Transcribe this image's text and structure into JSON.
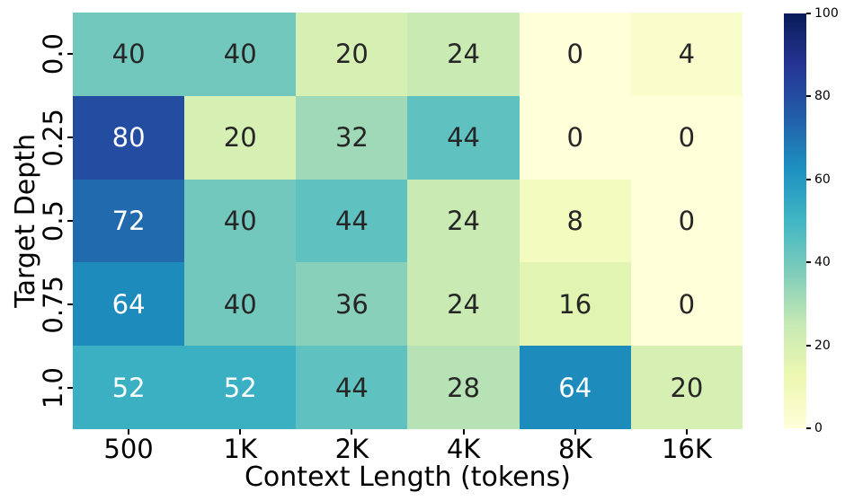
{
  "figure": {
    "background": "#ffffff"
  },
  "chart_data": {
    "type": "heatmap",
    "title": "",
    "xlabel": "Context Length (tokens)",
    "ylabel": "Target Depth",
    "x_categories": [
      "500",
      "1K",
      "2K",
      "4K",
      "8K",
      "16K"
    ],
    "y_categories": [
      "0.0",
      "0.25",
      "0.5",
      "0.75",
      "1.0"
    ],
    "values": [
      [
        40,
        40,
        20,
        24,
        0,
        4
      ],
      [
        80,
        20,
        32,
        44,
        0,
        0
      ],
      [
        72,
        40,
        44,
        24,
        8,
        0
      ],
      [
        64,
        40,
        36,
        24,
        16,
        0
      ],
      [
        52,
        52,
        44,
        28,
        64,
        20
      ]
    ],
    "vmin": 0,
    "vmax": 100,
    "colormap": "YlGnBu",
    "colormap_stops": [
      "#ffffd9",
      "#edf8b1",
      "#c7e9b4",
      "#7fcdbb",
      "#41b6c4",
      "#1d91c0",
      "#225ea8",
      "#253494",
      "#081d58"
    ],
    "colorbar_ticks": [
      0,
      20,
      40,
      60,
      80,
      100
    ],
    "colorbar_position": "right",
    "grid": false,
    "annotations": true
  },
  "style": {
    "annot_color_dark": "#262626",
    "annot_color_light": "#ffffff",
    "axis_text_color": "#000000",
    "luminance_threshold": 0.408
  }
}
